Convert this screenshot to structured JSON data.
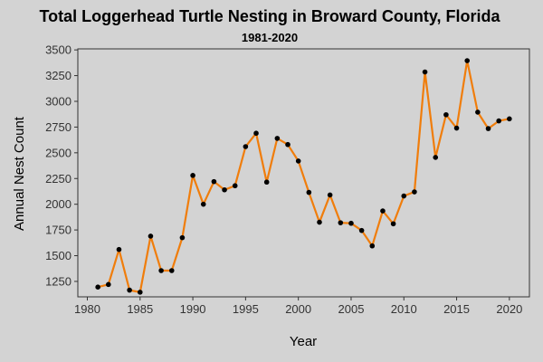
{
  "chart_data": {
    "type": "line",
    "title": "Total Loggerhead Turtle Nesting in Broward County, Florida",
    "subtitle": "1981-2020",
    "xlabel": "Year",
    "ylabel": "Annual Nest Count",
    "xlim": [
      1979.1,
      2021.9
    ],
    "ylim": [
      1100,
      3510
    ],
    "xticks": [
      1980,
      1985,
      1990,
      1995,
      2000,
      2005,
      2010,
      2015,
      2020
    ],
    "yticks": [
      1250,
      1500,
      1750,
      2000,
      2250,
      2500,
      2750,
      3000,
      3250,
      3500
    ],
    "grid": false,
    "legend": "none",
    "colors": {
      "line": "#f07d0b",
      "point": "#000000",
      "background": "#d3d3d3",
      "panel": "#d3d3d3"
    },
    "series": [
      {
        "x": [
          1981,
          1982,
          1983,
          1984,
          1985,
          1986,
          1987,
          1988,
          1989,
          1990,
          1991,
          1992,
          1993,
          1994,
          1995,
          1996,
          1997,
          1998,
          1999,
          2000,
          2001,
          2002,
          2003,
          2004,
          2005,
          2006,
          2007,
          2008,
          2009,
          2010,
          2011,
          2012,
          2013,
          2014,
          2015,
          2016,
          2017,
          2018,
          2019,
          2020
        ],
        "values": [
          1195,
          1220,
          1560,
          1165,
          1145,
          1690,
          1355,
          1355,
          1675,
          2280,
          2000,
          2220,
          2140,
          2180,
          2560,
          2690,
          2215,
          2640,
          2580,
          2420,
          2115,
          1825,
          2090,
          1820,
          1815,
          1745,
          1595,
          1935,
          1810,
          2080,
          2120,
          3285,
          2455,
          2870,
          2740,
          3395,
          2895,
          2735,
          2810,
          2830
        ]
      }
    ]
  }
}
